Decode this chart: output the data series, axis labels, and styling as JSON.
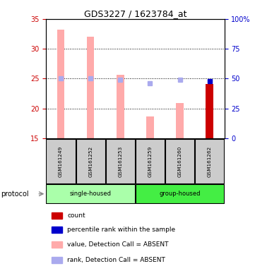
{
  "title": "GDS3227 / 1623784_at",
  "samples": [
    "GSM161249",
    "GSM161252",
    "GSM161253",
    "GSM161259",
    "GSM161260",
    "GSM161262"
  ],
  "bar_values": [
    33.2,
    32.0,
    25.7,
    18.7,
    20.9,
    24.1
  ],
  "bar_colors": [
    "#ffaaaa",
    "#ffaaaa",
    "#ffaaaa",
    "#ffaaaa",
    "#ffaaaa",
    "#cc0000"
  ],
  "rank_values_pct": [
    50.0,
    50.2,
    49.0,
    46.2,
    48.8,
    48.0
  ],
  "rank_colors": [
    "#aaaaee",
    "#aaaaee",
    "#aaaaee",
    "#aaaaee",
    "#aaaaee",
    "#0000cc"
  ],
  "ylim_left": [
    15,
    35
  ],
  "ylim_right": [
    0,
    100
  ],
  "yticks_left": [
    15,
    20,
    25,
    30,
    35
  ],
  "yticks_right": [
    0,
    25,
    50,
    75,
    100
  ],
  "ytick_labels_right": [
    "0",
    "25",
    "50",
    "75",
    "100%"
  ],
  "protocol_label": "protocol",
  "legend_items": [
    {
      "color": "#cc0000",
      "label": "count"
    },
    {
      "color": "#0000cc",
      "label": "percentile rank within the sample"
    },
    {
      "color": "#ffaaaa",
      "label": "value, Detection Call = ABSENT"
    },
    {
      "color": "#aaaaee",
      "label": "rank, Detection Call = ABSENT"
    }
  ],
  "bg_color": "#ffffff",
  "left_tick_color": "#cc0000",
  "right_tick_color": "#0000cc",
  "single_housed_color": "#aaffaa",
  "group_housed_color": "#44ee44",
  "label_bg_color": "#cccccc",
  "bar_width": 0.25
}
